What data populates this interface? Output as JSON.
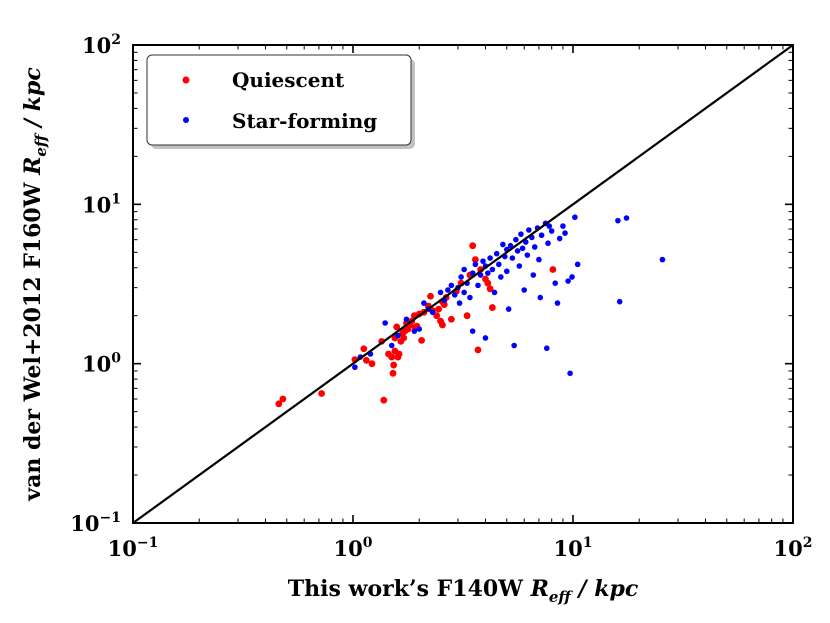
{
  "chart_data": {
    "type": "scatter",
    "xscale": "log",
    "yscale": "log",
    "xlim": [
      0.1,
      100
    ],
    "ylim": [
      0.1,
      100
    ],
    "xticks": [
      {
        "value": 0.1,
        "base": "10",
        "exp": "−1"
      },
      {
        "value": 1,
        "base": "10",
        "exp": "0"
      },
      {
        "value": 10,
        "base": "10",
        "exp": "1"
      },
      {
        "value": 100,
        "base": "10",
        "exp": "2"
      }
    ],
    "yticks": [
      {
        "value": 0.1,
        "base": "10",
        "exp": "−1"
      },
      {
        "value": 1,
        "base": "10",
        "exp": "0"
      },
      {
        "value": 10,
        "base": "10",
        "exp": "1"
      },
      {
        "value": 100,
        "base": "10",
        "exp": "2"
      }
    ],
    "xlabel": {
      "text": "This work’s F140W ",
      "sym": "R",
      "sub": "eff",
      "unit": " / kpc"
    },
    "ylabel": {
      "text": "van der Wel+2012 F160W ",
      "sym": "R",
      "sub": "eff",
      "unit": " / kpc"
    },
    "legend": {
      "position": "top-left",
      "entries": [
        "Quiescent",
        "Star-forming"
      ]
    },
    "one_to_one_line": true,
    "series": [
      {
        "name": "Quiescent",
        "color": "#ff0000",
        "points": [
          [
            0.46,
            0.56
          ],
          [
            0.48,
            0.6
          ],
          [
            0.72,
            0.65
          ],
          [
            1.02,
            1.06
          ],
          [
            1.12,
            1.24
          ],
          [
            1.15,
            1.05
          ],
          [
            1.22,
            1.0
          ],
          [
            1.35,
            1.38
          ],
          [
            1.38,
            0.59
          ],
          [
            1.45,
            1.15
          ],
          [
            1.5,
            1.1
          ],
          [
            1.52,
            0.87
          ],
          [
            1.53,
            0.98
          ],
          [
            1.55,
            1.2
          ],
          [
            1.55,
            1.45
          ],
          [
            1.58,
            1.7
          ],
          [
            1.6,
            1.1
          ],
          [
            1.62,
            1.15
          ],
          [
            1.65,
            1.38
          ],
          [
            1.68,
            1.55
          ],
          [
            1.7,
            1.45
          ],
          [
            1.72,
            1.6
          ],
          [
            1.75,
            1.8
          ],
          [
            1.78,
            1.65
          ],
          [
            1.82,
            1.75
          ],
          [
            1.85,
            1.85
          ],
          [
            1.9,
            2.0
          ],
          [
            1.92,
            1.68
          ],
          [
            1.95,
            1.72
          ],
          [
            2.0,
            2.05
          ],
          [
            2.05,
            1.4
          ],
          [
            2.1,
            2.1
          ],
          [
            2.2,
            2.3
          ],
          [
            2.25,
            2.65
          ],
          [
            2.3,
            2.15
          ],
          [
            2.4,
            2.0
          ],
          [
            2.45,
            2.2
          ],
          [
            2.5,
            1.85
          ],
          [
            2.55,
            1.75
          ],
          [
            2.55,
            2.45
          ],
          [
            2.6,
            2.35
          ],
          [
            2.65,
            2.6
          ],
          [
            2.8,
            1.9
          ],
          [
            2.95,
            2.85
          ],
          [
            3.1,
            3.2
          ],
          [
            3.3,
            2.0
          ],
          [
            3.4,
            3.6
          ],
          [
            3.5,
            5.5
          ],
          [
            3.6,
            4.5
          ],
          [
            3.7,
            1.22
          ],
          [
            3.8,
            3.9
          ],
          [
            4.0,
            3.4
          ],
          [
            4.1,
            3.2
          ],
          [
            4.2,
            2.95
          ],
          [
            4.3,
            2.25
          ],
          [
            8.1,
            3.9
          ]
        ]
      },
      {
        "name": "Star-forming",
        "color": "#0000ff",
        "points": [
          [
            1.02,
            0.95
          ],
          [
            1.08,
            1.1
          ],
          [
            1.2,
            1.15
          ],
          [
            1.4,
            1.8
          ],
          [
            1.5,
            1.3
          ],
          [
            1.6,
            1.5
          ],
          [
            1.75,
            1.9
          ],
          [
            1.9,
            1.6
          ],
          [
            2.0,
            1.65
          ],
          [
            2.1,
            2.4
          ],
          [
            2.2,
            2.2
          ],
          [
            2.3,
            2.1
          ],
          [
            2.5,
            2.8
          ],
          [
            2.6,
            2.5
          ],
          [
            2.7,
            2.9
          ],
          [
            2.8,
            3.1
          ],
          [
            2.9,
            2.7
          ],
          [
            3.0,
            3.0
          ],
          [
            3.05,
            2.4
          ],
          [
            3.1,
            3.5
          ],
          [
            3.2,
            2.8
          ],
          [
            3.2,
            3.9
          ],
          [
            3.3,
            3.2
          ],
          [
            3.4,
            2.6
          ],
          [
            3.5,
            1.6
          ],
          [
            3.5,
            3.7
          ],
          [
            3.6,
            4.2
          ],
          [
            3.7,
            3.1
          ],
          [
            3.8,
            3.6
          ],
          [
            3.9,
            4.4
          ],
          [
            4.0,
            1.45
          ],
          [
            4.0,
            4.1
          ],
          [
            4.1,
            3.7
          ],
          [
            4.2,
            4.6
          ],
          [
            4.3,
            3.9
          ],
          [
            4.4,
            2.8
          ],
          [
            4.5,
            4.9
          ],
          [
            4.6,
            4.2
          ],
          [
            4.7,
            3.5
          ],
          [
            4.8,
            5.6
          ],
          [
            4.9,
            4.7
          ],
          [
            5.0,
            5.2
          ],
          [
            5.0,
            3.8
          ],
          [
            5.1,
            2.2
          ],
          [
            5.2,
            5.5
          ],
          [
            5.3,
            4.6
          ],
          [
            5.4,
            1.3
          ],
          [
            5.5,
            6.0
          ],
          [
            5.6,
            5.1
          ],
          [
            5.7,
            4.1
          ],
          [
            5.8,
            6.5
          ],
          [
            5.9,
            5.3
          ],
          [
            6.0,
            2.9
          ],
          [
            6.1,
            5.8
          ],
          [
            6.2,
            4.8
          ],
          [
            6.3,
            6.9
          ],
          [
            6.5,
            6.2
          ],
          [
            6.6,
            3.6
          ],
          [
            6.7,
            5.4
          ],
          [
            6.9,
            7.1
          ],
          [
            7.0,
            4.5
          ],
          [
            7.1,
            2.6
          ],
          [
            7.2,
            6.4
          ],
          [
            7.5,
            7.6
          ],
          [
            7.6,
            1.25
          ],
          [
            7.7,
            5.7
          ],
          [
            7.8,
            7.3
          ],
          [
            8.0,
            6.8
          ],
          [
            8.3,
            3.2
          ],
          [
            8.5,
            2.4
          ],
          [
            8.7,
            6.1
          ],
          [
            9.0,
            7.3
          ],
          [
            9.2,
            6.6
          ],
          [
            9.5,
            3.3
          ],
          [
            9.7,
            0.87
          ],
          [
            9.9,
            3.5
          ],
          [
            10.2,
            8.3
          ],
          [
            10.5,
            4.2
          ],
          [
            16.0,
            7.9
          ],
          [
            16.3,
            2.45
          ],
          [
            17.5,
            8.2
          ],
          [
            25.5,
            4.5
          ]
        ]
      }
    ]
  }
}
